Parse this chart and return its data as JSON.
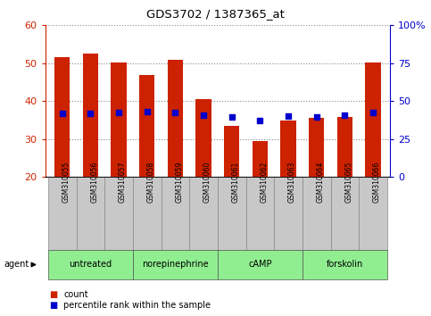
{
  "title": "GDS3702 / 1387365_at",
  "samples": [
    "GSM310055",
    "GSM310056",
    "GSM310057",
    "GSM310058",
    "GSM310059",
    "GSM310060",
    "GSM310061",
    "GSM310062",
    "GSM310063",
    "GSM310064",
    "GSM310065",
    "GSM310066"
  ],
  "counts": [
    51.5,
    52.5,
    50.3,
    47.0,
    51.0,
    40.5,
    33.5,
    29.5,
    35.0,
    35.5,
    35.8,
    50.3
  ],
  "percentiles": [
    42.0,
    42.0,
    42.5,
    43.0,
    42.5,
    41.0,
    39.5,
    37.0,
    40.0,
    39.8,
    41.0,
    42.5
  ],
  "bar_color": "#CC2200",
  "dot_color": "#0000CC",
  "ylim_left": [
    20,
    60
  ],
  "ylim_right": [
    0,
    100
  ],
  "yticks_left": [
    20,
    30,
    40,
    50,
    60
  ],
  "yticks_right": [
    0,
    25,
    50,
    75,
    100
  ],
  "yticklabels_right": [
    "0",
    "25",
    "50",
    "75",
    "100%"
  ],
  "agent_groups": [
    {
      "label": "untreated",
      "start": 0,
      "end": 3
    },
    {
      "label": "norepinephrine",
      "start": 3,
      "end": 6
    },
    {
      "label": "cAMP",
      "start": 6,
      "end": 9
    },
    {
      "label": "forskolin",
      "start": 9,
      "end": 12
    }
  ],
  "agent_bg_color": "#90EE90",
  "sample_bg_color": "#C8C8C8",
  "legend_count_color": "#CC2200",
  "legend_dot_color": "#0000CC",
  "legend_count_label": "count",
  "legend_percentile_label": "percentile rank within the sample",
  "grid_color": "#888888",
  "bar_width": 0.55
}
